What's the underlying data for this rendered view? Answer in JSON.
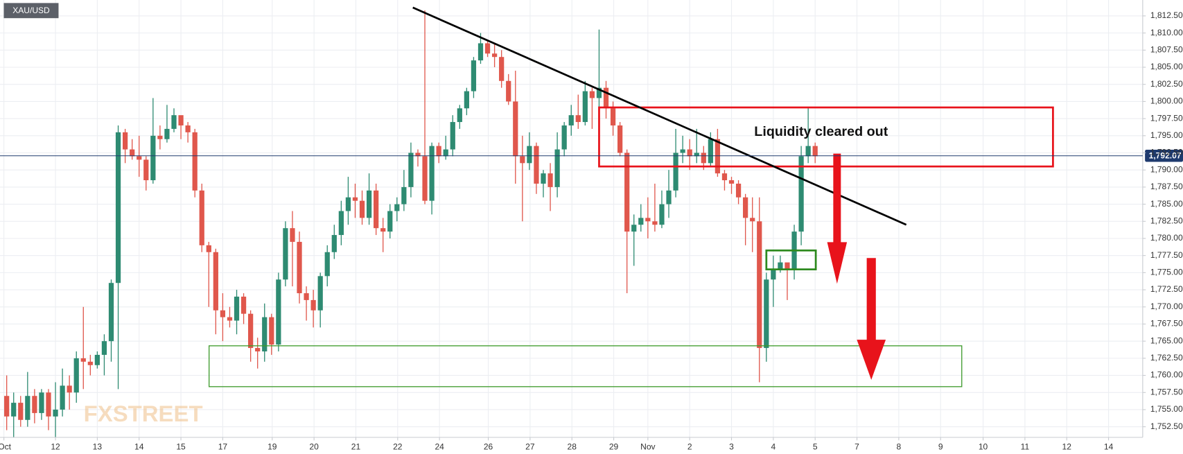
{
  "chart_data": {
    "type": "candlestick",
    "symbol": "XAU/USD",
    "annotation": "Liquidity cleared out",
    "watermark": "FXSTREET",
    "up_color": "#2e8b72",
    "down_color": "#e0574c",
    "grid": true,
    "xlim": [
      -1.96,
      162
    ],
    "ylim": [
      1750.95,
      1814.82
    ],
    "xticks": [
      {
        "value": -1.4,
        "label": "Oct"
      },
      {
        "value": 6,
        "label": "12"
      },
      {
        "value": 12,
        "label": "13"
      },
      {
        "value": 18,
        "label": "14"
      },
      {
        "value": 24,
        "label": "15"
      },
      {
        "value": 30,
        "label": "17"
      },
      {
        "value": 37.1,
        "label": "19"
      },
      {
        "value": 43.1,
        "label": "20"
      },
      {
        "value": 49.1,
        "label": "21"
      },
      {
        "value": 55.1,
        "label": "22"
      },
      {
        "value": 61.1,
        "label": "24"
      },
      {
        "value": 68.1,
        "label": "26"
      },
      {
        "value": 74.1,
        "label": "27"
      },
      {
        "value": 80.1,
        "label": "28"
      },
      {
        "value": 86.1,
        "label": "29"
      },
      {
        "value": 91,
        "label": "Nov"
      },
      {
        "value": 97,
        "label": "2"
      },
      {
        "value": 103,
        "label": "3"
      },
      {
        "value": 109,
        "label": "4"
      },
      {
        "value": 115,
        "label": "5"
      },
      {
        "value": 121,
        "label": "7"
      },
      {
        "value": 127,
        "label": "8"
      },
      {
        "value": 133,
        "label": "9"
      },
      {
        "value": 139.1,
        "label": "10"
      },
      {
        "value": 145.1,
        "label": "11"
      },
      {
        "value": 151.1,
        "label": "12"
      },
      {
        "value": 157.1,
        "label": "14"
      }
    ],
    "yticks": [
      {
        "value": 1752.5,
        "label": "1,752.50"
      },
      {
        "value": 1755,
        "label": "1,755.00"
      },
      {
        "value": 1757.5,
        "label": "1,757.50"
      },
      {
        "value": 1760,
        "label": "1,760.00"
      },
      {
        "value": 1762.5,
        "label": "1,762.50"
      },
      {
        "value": 1765,
        "label": "1,765.00"
      },
      {
        "value": 1767.5,
        "label": "1,767.50"
      },
      {
        "value": 1770,
        "label": "1,770.00"
      },
      {
        "value": 1772.5,
        "label": "1,772.50"
      },
      {
        "value": 1775,
        "label": "1,775.00"
      },
      {
        "value": 1777.5,
        "label": "1,777.50"
      },
      {
        "value": 1780,
        "label": "1,780.00"
      },
      {
        "value": 1782.5,
        "label": "1,782.50"
      },
      {
        "value": 1785,
        "label": "1,785.00"
      },
      {
        "value": 1787.5,
        "label": "1,787.50"
      },
      {
        "value": 1790,
        "label": "1,790.00"
      },
      {
        "value": 1792.5,
        "label": "1,792.50"
      },
      {
        "value": 1795,
        "label": "1,795.00"
      },
      {
        "value": 1797.5,
        "label": "1,797.50"
      },
      {
        "value": 1800,
        "label": "1,800.00"
      },
      {
        "value": 1802.5,
        "label": "1,802.50"
      },
      {
        "value": 1805,
        "label": "1,805.00"
      },
      {
        "value": 1807.5,
        "label": "1,807.50"
      },
      {
        "value": 1810,
        "label": "1,810.00"
      },
      {
        "value": 1812.5,
        "label": "1,812.50"
      }
    ],
    "last_price": {
      "value": 1792.07,
      "label": "1,792.07"
    },
    "x": [
      -1,
      0,
      1,
      2,
      3,
      4,
      5,
      6,
      7,
      8,
      9,
      10,
      11,
      12,
      13,
      14,
      15,
      16,
      17,
      18,
      19,
      20,
      21,
      22,
      23,
      24,
      25,
      26,
      27,
      28,
      29,
      30,
      31,
      32,
      33,
      34,
      35,
      36,
      37,
      38,
      39,
      40,
      41,
      42,
      43,
      44,
      45,
      46,
      47,
      48,
      49,
      50,
      51,
      52,
      53,
      54,
      55,
      56,
      57,
      58,
      59,
      60,
      61,
      62,
      63,
      64,
      65,
      66,
      67,
      68,
      69,
      70,
      71,
      72,
      73,
      74,
      75,
      76,
      77,
      78,
      79,
      80,
      81,
      82,
      83,
      84,
      85,
      86,
      87,
      88,
      89,
      90,
      91,
      92,
      93,
      94,
      95,
      96,
      97,
      98,
      99,
      100,
      101,
      102,
      103,
      104,
      105,
      106,
      107,
      108,
      109,
      110,
      111,
      112,
      113,
      114,
      115
    ],
    "open": [
      1757,
      1754,
      1756,
      1753.5,
      1757,
      1754.5,
      1757.5,
      1754,
      1755,
      1758.5,
      1757.5,
      1762.5,
      1762,
      1761.5,
      1763,
      1765,
      1773.5,
      1795.5,
      1793,
      1792,
      1791.5,
      1788.5,
      1795,
      1794.5,
      1796,
      1798,
      1796.5,
      1795.5,
      1787,
      1779,
      1778,
      1769.5,
      1768.5,
      1768,
      1771.5,
      1769,
      1764,
      1763.5,
      1768.5,
      1764.5,
      1774,
      1781.5,
      1779.5,
      1772,
      1771,
      1769.5,
      1774.5,
      1778,
      1780.5,
      1784,
      1786,
      1785.5,
      1783,
      1787,
      1781.5,
      1781,
      1784,
      1785,
      1787.5,
      1792.5,
      1792,
      1785.5,
      1793.5,
      1792,
      1793,
      1797,
      1799,
      1801.5,
      1806,
      1808.5,
      1807,
      1806.5,
      1803,
      1800,
      1792,
      1791,
      1793.5,
      1788,
      1789.5,
      1787.5,
      1793,
      1796.5,
      1798,
      1797,
      1801.5,
      1800.5,
      1802,
      1799,
      1796.5,
      1792.5,
      1781,
      1782,
      1783,
      1782.5,
      1782,
      1785,
      1787,
      1792.5,
      1793,
      1792,
      1792.5,
      1791,
      1794.5,
      1789.5,
      1788.5,
      1788,
      1786,
      1783,
      1782.5,
      1764,
      1774,
      1775.5,
      1776.5,
      1775.5,
      1781,
      1792,
      1793.5
    ],
    "high": [
      1760,
      1757.5,
      1757,
      1760.5,
      1758,
      1758,
      1758,
      1759,
      1761,
      1760,
      1763.5,
      1770,
      1763,
      1763.5,
      1766,
      1774,
      1796.5,
      1796,
      1794.5,
      1795,
      1792,
      1800.5,
      1796.5,
      1799.5,
      1799,
      1797.5,
      1797,
      1796,
      1788,
      1779.5,
      1778.5,
      1772,
      1770,
      1772.5,
      1772,
      1769.5,
      1765.5,
      1770.5,
      1769,
      1775,
      1782.5,
      1784,
      1781,
      1773,
      1772.5,
      1775,
      1779,
      1782,
      1785.5,
      1789,
      1788,
      1787,
      1789.5,
      1788,
      1783,
      1785,
      1786,
      1790,
      1794,
      1793,
      1813.3,
      1794,
      1794,
      1795,
      1798,
      1799.5,
      1802,
      1806.5,
      1810,
      1809,
      1808.5,
      1807.5,
      1804,
      1804.5,
      1795,
      1795.5,
      1794,
      1790,
      1791,
      1795.5,
      1797,
      1799.5,
      1801,
      1803,
      1802,
      1810.5,
      1803,
      1800,
      1797,
      1793,
      1783.5,
      1785,
      1786,
      1788,
      1787,
      1790,
      1796,
      1795,
      1794.5,
      1796,
      1793.5,
      1795.5,
      1796,
      1790,
      1789,
      1788.5,
      1786.5,
      1786,
      1786,
      1775,
      1777.5,
      1777.5,
      1776,
      1782,
      1793.5,
      1799,
      1794
    ],
    "low": [
      1752,
      1751,
      1752.5,
      1752.5,
      1753,
      1753.5,
      1752,
      1751,
      1754,
      1755,
      1756,
      1758,
      1760,
      1761,
      1760,
      1762,
      1758,
      1791,
      1791.5,
      1789,
      1787,
      1788,
      1793,
      1794,
      1795.5,
      1794.5,
      1794,
      1786,
      1778,
      1770,
      1766,
      1765,
      1767,
      1766,
      1767.5,
      1762,
      1761,
      1762,
      1763,
      1763.5,
      1773,
      1773,
      1770.5,
      1768,
      1767,
      1767,
      1773,
      1777,
      1779,
      1782,
      1783,
      1782,
      1782,
      1780.5,
      1778,
      1780,
      1782.5,
      1784,
      1786,
      1790.5,
      1785,
      1783.5,
      1791,
      1791.5,
      1792,
      1796,
      1798,
      1800.5,
      1805.5,
      1806.5,
      1805,
      1802,
      1799.5,
      1788,
      1782.5,
      1790,
      1786.5,
      1786,
      1784,
      1786,
      1792,
      1795,
      1796,
      1796.5,
      1796,
      1795.5,
      1797.5,
      1795,
      1792,
      1772,
      1776,
      1781,
      1780,
      1781,
      1781.5,
      1783,
      1786,
      1791,
      1790,
      1791,
      1790,
      1790.5,
      1789,
      1787,
      1786.5,
      1785,
      1779,
      1778,
      1759,
      1762,
      1770,
      1775,
      1771,
      1774,
      1779,
      1791,
      1791
    ],
    "close": [
      1754,
      1756,
      1753.5,
      1757,
      1754.5,
      1757.5,
      1754,
      1755,
      1758.5,
      1757.5,
      1762.5,
      1762,
      1761.5,
      1763,
      1765,
      1773.5,
      1795.5,
      1793,
      1792,
      1791.5,
      1788.5,
      1795,
      1794.5,
      1796,
      1798,
      1796.5,
      1795.5,
      1787,
      1779,
      1778,
      1769.5,
      1768.5,
      1768,
      1771.5,
      1769,
      1764,
      1763.5,
      1768.5,
      1764.5,
      1774,
      1781.5,
      1779.5,
      1772,
      1771,
      1769.5,
      1774.5,
      1778,
      1780.5,
      1784,
      1786,
      1785.5,
      1783,
      1787,
      1781.5,
      1781,
      1784,
      1785,
      1787.5,
      1792.5,
      1792,
      1785.5,
      1793.5,
      1792,
      1793,
      1797,
      1799,
      1801.5,
      1806,
      1808.5,
      1807,
      1806.5,
      1803,
      1800,
      1792,
      1791,
      1793.5,
      1788,
      1789.5,
      1787.5,
      1793,
      1796.5,
      1798,
      1797,
      1801.5,
      1800.5,
      1802,
      1799,
      1796.5,
      1792.5,
      1781,
      1782,
      1783,
      1782.5,
      1782,
      1785,
      1787,
      1792.5,
      1793,
      1792,
      1792.5,
      1791,
      1794.5,
      1789.5,
      1788.5,
      1788,
      1786,
      1783,
      1782.5,
      1764,
      1774,
      1775.5,
      1776.5,
      1775.5,
      1781,
      1792,
      1793.5,
      1792
    ]
  }
}
